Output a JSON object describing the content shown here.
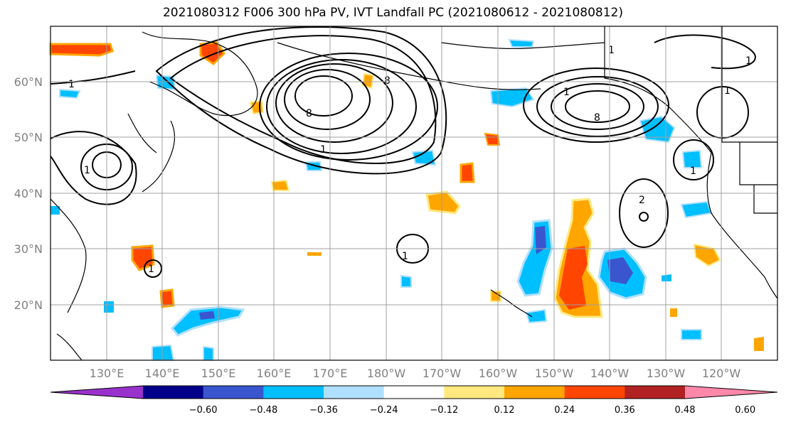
{
  "title": "2021080312 F006 300 hPa PV, IVT Landfall PC (2021080612 - 2021080812)",
  "map": {
    "projection": "equirectangular",
    "lon_range": [
      120,
      250
    ],
    "lat_range": [
      10,
      70
    ],
    "lat_labels": [
      "60°N",
      "50°N",
      "40°N",
      "30°N",
      "20°N"
    ],
    "lon_labels": [
      "130°E",
      "140°E",
      "150°E",
      "160°E",
      "170°E",
      "180°W",
      "170°W",
      "160°W",
      "150°W",
      "140°W",
      "130°W",
      "120°W"
    ],
    "contour_labels": [
      "1",
      "1",
      "1",
      "1",
      "1",
      "1",
      "1",
      "1",
      "2",
      "8",
      "8",
      "8",
      "1",
      "1"
    ],
    "gridline_color": "#a0a0a0"
  },
  "colorbar": {
    "colors": [
      "#9932cc",
      "#00008b",
      "#3a56cf",
      "#00bfff",
      "#b0e0ff",
      "#ffffff",
      "#ffe97f",
      "#ffa500",
      "#ff4500",
      "#b22222",
      "#ff88aa"
    ],
    "tick_labels": [
      "−0.60",
      "−0.48",
      "−0.36",
      "−0.24",
      "−0.12",
      "0.12",
      "0.24",
      "0.36",
      "0.48",
      "0.60"
    ]
  }
}
